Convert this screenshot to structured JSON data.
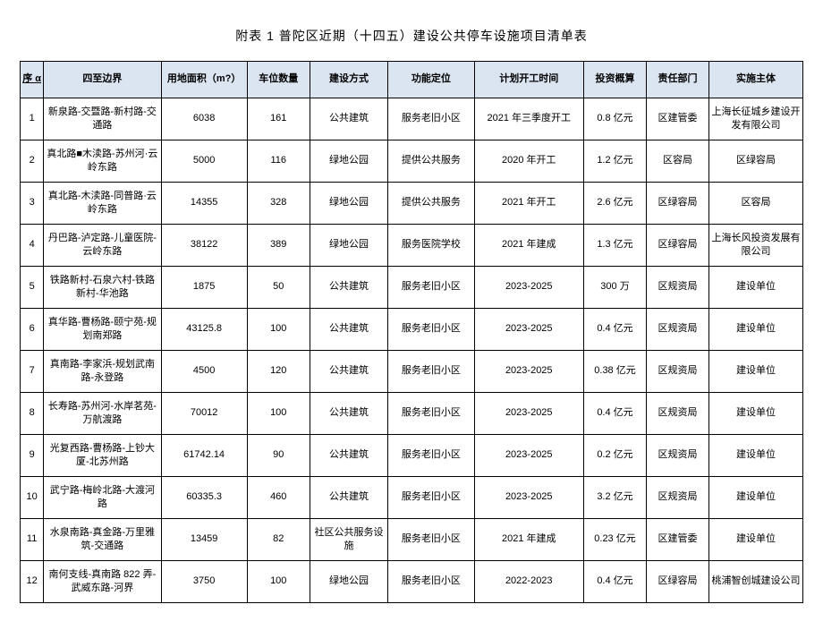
{
  "title": "附表 1 普陀区近期（十四五）建设公共停车设施项目清单表",
  "columns": [
    "序 α",
    "四至边界",
    "用地面积（m?）",
    "车位数量",
    "建设方式",
    "功能定位",
    "计划开工时间",
    "投资概算",
    "责任部门",
    "实施主体"
  ],
  "rows": [
    [
      "1",
      "新泉路-交暨路-新村路-交通路",
      "6038",
      "161",
      "公共建筑",
      "服务老旧小区",
      "2021 年三季度开工",
      "0.8 亿元",
      "区建管委",
      "上海长征城乡建设开发有限公司"
    ],
    [
      "2",
      "真北路■木渎路-苏州河·云岭东路",
      "5000",
      "116",
      "绿地公园",
      "提供公共服务",
      "2020 年开工",
      "1.2 亿元",
      "区容局",
      "区绿容局"
    ],
    [
      "3",
      "真北路-木渎路-同普路·云岭东路",
      "14355",
      "328",
      "绿地公园",
      "提供公共服务",
      "2021 年开工",
      "2.6 亿元",
      "区绿容局",
      "区容局"
    ],
    [
      "4",
      "丹巴路-泸定路-儿童医院-云岭东路",
      "38122",
      "389",
      "绿地公园",
      "服务医院学校",
      "2021 年建成",
      "1.3 亿元",
      "区绿容局",
      "上海长风投资发展有限公司"
    ],
    [
      "5",
      "铁路新村-石泉六村-铁路新村-华池路",
      "1875",
      "50",
      "公共建筑",
      "服务老旧小区",
      "2023-2025",
      "300 万",
      "区规资局",
      "建设单位"
    ],
    [
      "6",
      "真华路-曹杨路-颐宁苑-规划南郑路",
      "43125.8",
      "100",
      "公共建筑",
      "服务老旧小区",
      "2023-2025",
      "0.4 亿元",
      "区规资局",
      "建设单位"
    ],
    [
      "7",
      "真南路-李家浜-规划武南路-永登路",
      "4500",
      "120",
      "公共建筑",
      "服务老旧小区",
      "2023-2025",
      "0.38 亿元",
      "区规资局",
      "建设单位"
    ],
    [
      "8",
      "长寿路-苏州河-水岸茗苑-万航渡路",
      "70012",
      "100",
      "公共建筑",
      "服务老旧小区",
      "2023-2025",
      "0.4 亿元",
      "区规资局",
      "建设单位"
    ],
    [
      "9",
      "光复西路-曹杨路-上钞大厦-北苏州路",
      "61742.14",
      "90",
      "公共建筑",
      "服务老旧小区",
      "2023-2025",
      "0.2 亿元",
      "区规资局",
      "建设单位"
    ],
    [
      "10",
      "武宁路-梅岭北路-大渡河路",
      "60335.3",
      "460",
      "公共建筑",
      "服务老旧小区",
      "2023-2025",
      "3.2 亿元",
      "区规资局",
      "建设单位"
    ],
    [
      "11",
      "水泉南路-真金路-万里雅筑-交通路",
      "13459",
      "82",
      "社区公共服务设施",
      "服务老旧小区",
      "2021 年建成",
      "0.23 亿元",
      "区建管委",
      "建设单位"
    ],
    [
      "12",
      "南何支线-真南路 822 弄-武威东路-河界",
      "3750",
      "100",
      "绿地公园",
      "服务老旧小区",
      "2022-2023",
      "0.4 亿元",
      "区绿容局",
      "桃浦智创城建设公司"
    ]
  ]
}
